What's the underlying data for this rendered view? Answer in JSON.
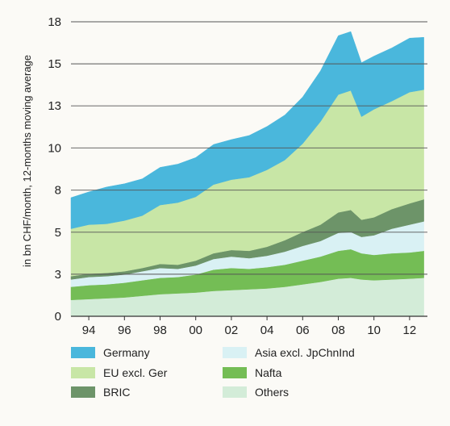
{
  "chart_data": {
    "type": "area",
    "stacked": true,
    "title": "",
    "ylabel": "in bn CHF/month, 12-months moving average",
    "xlabel": "",
    "x": [
      1993,
      1994,
      1995,
      1996,
      1997,
      1998,
      1999,
      2000,
      2001,
      2002,
      2003,
      2004,
      2005,
      2006,
      2007,
      2008,
      2008.7,
      2009.3,
      2010,
      2011,
      2012,
      2012.8
    ],
    "xlim": [
      1993,
      2013
    ],
    "ylim": [
      0,
      18
    ],
    "x_ticks": [
      {
        "value": 1994,
        "label": "94"
      },
      {
        "value": 1996,
        "label": "96"
      },
      {
        "value": 1998,
        "label": "98"
      },
      {
        "value": 2000,
        "label": "00"
      },
      {
        "value": 2002,
        "label": "02"
      },
      {
        "value": 2004,
        "label": "04"
      },
      {
        "value": 2006,
        "label": "06"
      },
      {
        "value": 2008,
        "label": "08"
      },
      {
        "value": 2010,
        "label": "10"
      },
      {
        "value": 2012,
        "label": "12"
      }
    ],
    "y_ticks": [
      {
        "value": 0,
        "label": "0"
      },
      {
        "value": 2.57,
        "label": "3"
      },
      {
        "value": 5.14,
        "label": "5"
      },
      {
        "value": 7.71,
        "label": "8"
      },
      {
        "value": 10.29,
        "label": "10"
      },
      {
        "value": 12.86,
        "label": "13"
      },
      {
        "value": 15.43,
        "label": "15"
      },
      {
        "value": 18,
        "label": "18"
      }
    ],
    "grid": "horizontal",
    "legend_position": "bottom",
    "series": [
      {
        "name": "Others",
        "color": "#d3ecd8",
        "values": [
          1.0,
          1.05,
          1.1,
          1.15,
          1.25,
          1.35,
          1.4,
          1.45,
          1.55,
          1.6,
          1.65,
          1.7,
          1.8,
          1.95,
          2.1,
          2.3,
          2.35,
          2.25,
          2.2,
          2.25,
          2.3,
          2.35
        ]
      },
      {
        "name": "Nafta",
        "color": "#74bd55",
        "values": [
          0.8,
          0.85,
          0.85,
          0.9,
          0.95,
          1.0,
          1.0,
          1.1,
          1.3,
          1.35,
          1.25,
          1.3,
          1.35,
          1.45,
          1.55,
          1.7,
          1.75,
          1.6,
          1.55,
          1.6,
          1.6,
          1.65
        ]
      },
      {
        "name": "Asia excl. JpChnInd",
        "color": "#d9f1f4",
        "values": [
          0.45,
          0.5,
          0.5,
          0.5,
          0.55,
          0.6,
          0.5,
          0.55,
          0.65,
          0.7,
          0.65,
          0.7,
          0.8,
          0.9,
          0.95,
          1.1,
          1.05,
          1.0,
          1.2,
          1.5,
          1.7,
          1.8
        ]
      },
      {
        "name": "BRIC",
        "color": "#6d9469",
        "values": [
          0.2,
          0.2,
          0.2,
          0.2,
          0.2,
          0.25,
          0.25,
          0.3,
          0.35,
          0.4,
          0.45,
          0.55,
          0.7,
          0.85,
          1.0,
          1.25,
          1.35,
          1.05,
          1.1,
          1.2,
          1.3,
          1.35
        ]
      },
      {
        "name": "EU excl. Ger",
        "color": "#c8e6a6",
        "values": [
          2.9,
          3.0,
          3.0,
          3.1,
          3.2,
          3.6,
          3.8,
          3.9,
          4.2,
          4.3,
          4.5,
          4.7,
          4.9,
          5.4,
          6.3,
          7.2,
          7.3,
          6.3,
          6.6,
          6.6,
          6.8,
          6.7
        ]
      },
      {
        "name": "Germany",
        "color": "#4ab7dc",
        "values": [
          1.9,
          2.0,
          2.25,
          2.25,
          2.25,
          2.3,
          2.35,
          2.4,
          2.45,
          2.45,
          2.55,
          2.65,
          2.75,
          2.85,
          3.1,
          3.6,
          3.6,
          3.3,
          3.25,
          3.25,
          3.3,
          3.2
        ]
      }
    ],
    "legend_order": [
      "Germany",
      "Asia excl. JpChnInd",
      "EU excl. Ger",
      "Nafta",
      "BRIC",
      "Others"
    ]
  }
}
